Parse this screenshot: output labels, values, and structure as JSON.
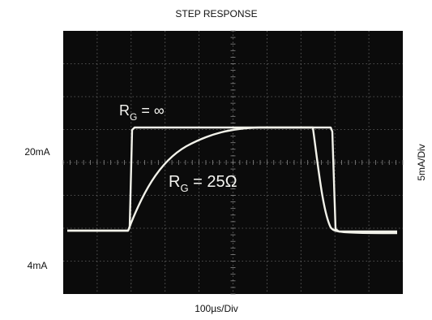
{
  "title": "STEP RESPONSE",
  "y_labels": [
    "20mA",
    "4mA"
  ],
  "x_scale_label": "100µs/Div",
  "y_scale_label": "5mA/Div",
  "annotations": [
    {
      "main": "R",
      "sub": "G",
      "rest": " = ∞"
    },
    {
      "main": "R",
      "sub": "G",
      "rest": " = 25Ω"
    }
  ]
}
